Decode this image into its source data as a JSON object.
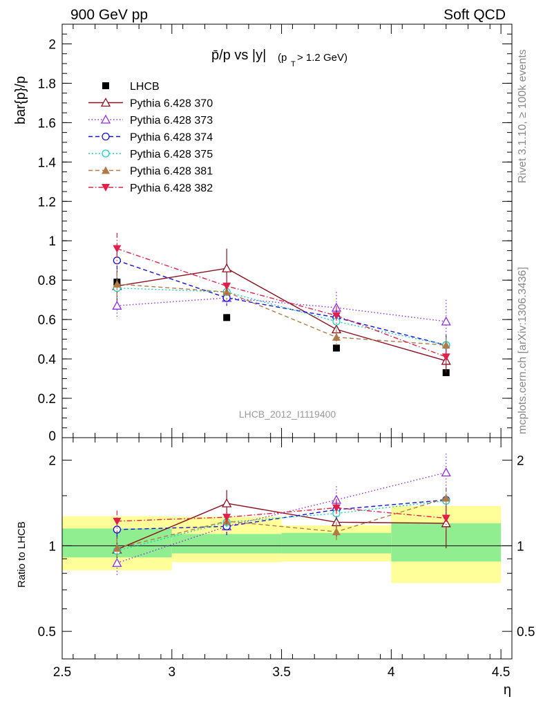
{
  "header": {
    "left": "900 GeV pp",
    "right": "Soft QCD"
  },
  "side_text": {
    "top": "Rivet 3.1.10, ≥ 100k events",
    "bottom": "mcplots.cern.ch [arXiv:1306.3436]"
  },
  "chart_data": [
    {
      "type": "line",
      "title_main": "p̄/p vs |y|",
      "title_sub": "(p",
      "title_sub_index": "T",
      "title_sub_tail": " > 1.2 GeV)",
      "ylabel": "bar{p}/p",
      "watermark": "LHCB_2012_I1119400",
      "xlim": [
        2.5,
        4.55
      ],
      "ylim": [
        0,
        2.1
      ],
      "yticks": [
        {
          "v": 0.2,
          "label": "0.2"
        },
        {
          "v": 0.4,
          "label": "0.4"
        },
        {
          "v": 0.6,
          "label": "0.6"
        },
        {
          "v": 0.8,
          "label": "0.8"
        },
        {
          "v": 1.0,
          "label": "1"
        },
        {
          "v": 1.2,
          "label": "1.2"
        },
        {
          "v": 1.4,
          "label": "1.4"
        },
        {
          "v": 1.6,
          "label": "1.6"
        },
        {
          "v": 1.8,
          "label": "1.8"
        },
        {
          "v": 2.0,
          "label": "2"
        }
      ],
      "y_edge_label": "0",
      "x": [
        2.75,
        3.25,
        3.75,
        4.25
      ],
      "series": [
        {
          "name": "LHCB",
          "color": "#000000",
          "marker": "square-filled",
          "dash": "none",
          "line": false,
          "values": [
            0.79,
            0.61,
            0.455,
            0.33
          ],
          "errors": [
            0.02,
            0.015,
            0.015,
            0.012
          ]
        },
        {
          "name": "Pythia 6.428 370",
          "color": "#8b0d1c",
          "marker": "triangle-up-open",
          "dash": "solid",
          "line": true,
          "values": [
            0.77,
            0.86,
            0.55,
            0.39
          ],
          "errors": [
            0.08,
            0.1,
            0.06,
            0.06
          ]
        },
        {
          "name": "Pythia 6.428 373",
          "color": "#8a2be2",
          "marker": "triangle-up-open",
          "dash": "1.5,3",
          "line": true,
          "values": [
            0.67,
            0.71,
            0.66,
            0.59
          ],
          "errors": [
            0.06,
            0.04,
            0.08,
            0.11
          ]
        },
        {
          "name": "Pythia 6.428 374",
          "color": "#1010d8",
          "marker": "circle-open",
          "dash": "6,4",
          "line": true,
          "values": [
            0.9,
            0.71,
            0.61,
            0.47
          ],
          "errors": [
            0.08,
            0.04,
            0.04,
            0.05
          ]
        },
        {
          "name": "Pythia 6.428 375",
          "color": "#18cfc0",
          "marker": "circle-open",
          "dash": "2,3",
          "line": true,
          "values": [
            0.76,
            0.74,
            0.59,
            0.47
          ],
          "errors": [
            0.06,
            0.04,
            0.04,
            0.04
          ]
        },
        {
          "name": "Pythia 6.428 381",
          "color": "#b07a46",
          "marker": "triangle-up-filled",
          "dash": "6,4",
          "line": true,
          "values": [
            0.78,
            0.74,
            0.51,
            0.47
          ],
          "errors": [
            0.06,
            0.04,
            0.04,
            0.04
          ]
        },
        {
          "name": "Pythia 6.428 382",
          "color": "#e0204a",
          "marker": "triangle-down-filled",
          "dash": "7,3,1.5,3",
          "line": true,
          "values": [
            0.96,
            0.77,
            0.62,
            0.41
          ],
          "errors": [
            0.08,
            0.05,
            0.05,
            0.04
          ]
        }
      ]
    },
    {
      "type": "line",
      "ylabel": "Ratio to LHCB",
      "xlabel": "η",
      "xlim": [
        2.5,
        4.55
      ],
      "ylim": [
        0.4,
        2.4
      ],
      "log_y": true,
      "yticks": [
        {
          "v": 0.5,
          "label": "0.5"
        },
        {
          "v": 1.0,
          "label": "1"
        },
        {
          "v": 2.0,
          "label": "2"
        }
      ],
      "xticks": [
        {
          "v": 2.5,
          "label": "2.5"
        },
        {
          "v": 3.0,
          "label": "3"
        },
        {
          "v": 3.5,
          "label": "3.5"
        },
        {
          "v": 4.0,
          "label": "4"
        },
        {
          "v": 4.5,
          "label": "4.5"
        }
      ],
      "bands": [
        {
          "x0": 2.5,
          "x1": 3.0,
          "yellow": [
            0.82,
            1.27
          ],
          "green": [
            0.91,
            1.15
          ]
        },
        {
          "x0": 3.0,
          "x1": 3.5,
          "yellow": [
            0.875,
            1.265
          ],
          "green": [
            0.94,
            1.1
          ]
        },
        {
          "x0": 3.5,
          "x1": 4.0,
          "yellow": [
            0.88,
            1.18
          ],
          "green": [
            0.94,
            1.11
          ]
        },
        {
          "x0": 4.0,
          "x1": 4.5,
          "yellow": [
            0.74,
            1.38
          ],
          "green": [
            0.88,
            1.2
          ]
        }
      ],
      "x": [
        2.75,
        3.25,
        3.75,
        4.25
      ],
      "series": [
        {
          "name": "Pythia 6.428 370",
          "values": [
            0.97,
            1.41,
            1.21,
            1.2
          ],
          "errors": [
            0.1,
            0.16,
            0.14,
            0.22
          ]
        },
        {
          "name": "Pythia 6.428 373",
          "values": [
            0.87,
            1.17,
            1.45,
            1.81
          ],
          "errors": [
            0.08,
            0.07,
            0.17,
            0.3
          ]
        },
        {
          "name": "Pythia 6.428 374",
          "values": [
            1.14,
            1.17,
            1.34,
            1.45
          ],
          "errors": [
            0.1,
            0.08,
            0.1,
            0.15
          ]
        },
        {
          "name": "Pythia 6.428 375",
          "values": [
            0.96,
            1.21,
            1.3,
            1.44
          ],
          "errors": [
            0.08,
            0.07,
            0.09,
            0.13
          ]
        },
        {
          "name": "Pythia 6.428 381",
          "values": [
            0.98,
            1.22,
            1.12,
            1.47
          ],
          "errors": [
            0.08,
            0.07,
            0.09,
            0.13
          ]
        },
        {
          "name": "Pythia 6.428 382",
          "values": [
            1.22,
            1.26,
            1.36,
            1.25
          ],
          "errors": [
            0.11,
            0.08,
            0.1,
            0.12
          ]
        }
      ]
    }
  ]
}
